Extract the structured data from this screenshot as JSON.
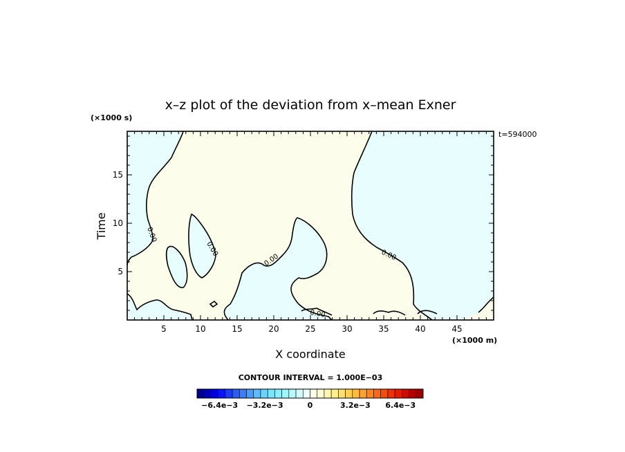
{
  "chart_data": {
    "type": "contour",
    "title": "x–z plot of the deviation from x–mean Exner",
    "xlabel": "X coordinate",
    "ylabel": "Time",
    "x_unit": "(×1000 m)",
    "y_unit": "(×1000 s)",
    "time_label": "t=594000",
    "xlim": [
      0,
      50
    ],
    "ylim": [
      0,
      19.5
    ],
    "x_ticks": [
      5,
      10,
      15,
      20,
      25,
      30,
      35,
      40,
      45
    ],
    "y_ticks": [
      5,
      10,
      15
    ],
    "contour_interval_label": "CONTOUR INTERVAL = 1.000E−03",
    "contour_label": "0.00",
    "colors": {
      "negative_fill": "#e8fdfd",
      "positive_fill": "#fdfdec",
      "contour": "#000000"
    },
    "colorbar": {
      "ticks": [
        "−6.4e−3",
        "−3.2e−3",
        "0",
        "3.2e−3",
        "6.4e−3"
      ],
      "colors": [
        "#00008c",
        "#0000b4",
        "#0000dc",
        "#0a14f0",
        "#1a3cf5",
        "#2a5cf8",
        "#3a7cfa",
        "#4a9cfc",
        "#5abcfd",
        "#6ad4fe",
        "#7ae4ff",
        "#8aefff",
        "#a0f6ff",
        "#b8faff",
        "#d0fcff",
        "#e8feff",
        "#ffffe8",
        "#fffcd0",
        "#fff6b0",
        "#ffee90",
        "#ffe070",
        "#ffd050",
        "#ffbc40",
        "#ffa030",
        "#ff8420",
        "#ff6810",
        "#f84c08",
        "#f03004",
        "#e01c02",
        "#cc0c00",
        "#b40000",
        "#9c0000"
      ]
    },
    "series": []
  }
}
